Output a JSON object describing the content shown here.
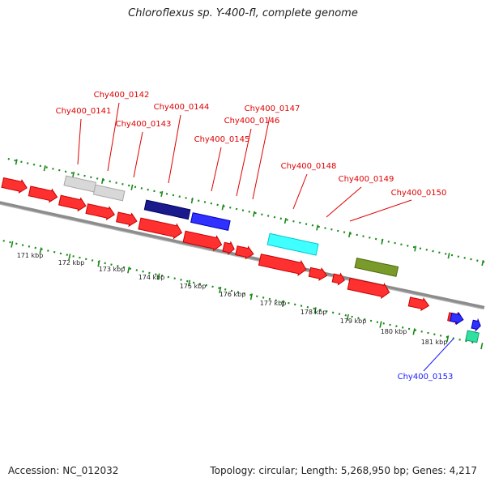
{
  "title": "Chloroflexus sp. Y-400-fl, complete genome",
  "footer": {
    "accession": "Accession: NC_012032",
    "summary": "Topology: circular; Length: 5,268,950 bp; Genes: 4,217"
  },
  "colors": {
    "backbone": "#8c8c8c",
    "dotted_track": "#1a8a1a",
    "label_plus": "#e00000",
    "label_minus": "#1a1aff"
  },
  "ticks": [
    "171 kbp",
    "172 kbp",
    "173 kbp",
    "174 kbp",
    "175 kbp",
    "176 kbp",
    "177 kbp",
    "178 kbp",
    "179 kbp",
    "180 kbp",
    "181 kbp"
  ],
  "gene_labels": [
    {
      "text": "Chy400_0141",
      "strand": "plus"
    },
    {
      "text": "Chy400_0142",
      "strand": "plus"
    },
    {
      "text": "Chy400_0143",
      "strand": "plus"
    },
    {
      "text": "Chy400_0144",
      "strand": "plus"
    },
    {
      "text": "Chy400_0145",
      "strand": "plus"
    },
    {
      "text": "Chy400_0146",
      "strand": "plus"
    },
    {
      "text": "Chy400_0147",
      "strand": "plus"
    },
    {
      "text": "Chy400_0148",
      "strand": "plus"
    },
    {
      "text": "Chy400_0149",
      "strand": "plus"
    },
    {
      "text": "Chy400_0150",
      "strand": "plus"
    },
    {
      "text": "Chy400_0153",
      "strand": "minus"
    }
  ],
  "features": [
    {
      "kind": "arrow",
      "color": "red"
    },
    {
      "kind": "arrow",
      "color": "red"
    },
    {
      "kind": "arrow",
      "color": "red"
    },
    {
      "kind": "arrow",
      "color": "red"
    },
    {
      "kind": "arrow",
      "color": "red"
    },
    {
      "kind": "arrow",
      "color": "red"
    },
    {
      "kind": "arrow",
      "color": "red"
    },
    {
      "kind": "arrow",
      "color": "red"
    },
    {
      "kind": "arrow",
      "color": "red"
    },
    {
      "kind": "arrow",
      "color": "red"
    },
    {
      "kind": "arrow",
      "color": "red"
    },
    {
      "kind": "arrow",
      "color": "red"
    },
    {
      "kind": "arrow",
      "color": "red"
    },
    {
      "kind": "arrow",
      "color": "red"
    },
    {
      "kind": "arrow",
      "color": "red"
    },
    {
      "kind": "box",
      "color": "light-gray"
    },
    {
      "kind": "box",
      "color": "light-gray"
    },
    {
      "kind": "box",
      "color": "navy"
    },
    {
      "kind": "box",
      "color": "blue"
    },
    {
      "kind": "box",
      "color": "cyan"
    },
    {
      "kind": "box",
      "color": "olive"
    },
    {
      "kind": "arrow",
      "color": "blue"
    },
    {
      "kind": "arrow",
      "color": "blue"
    },
    {
      "kind": "box",
      "color": "teal"
    }
  ]
}
